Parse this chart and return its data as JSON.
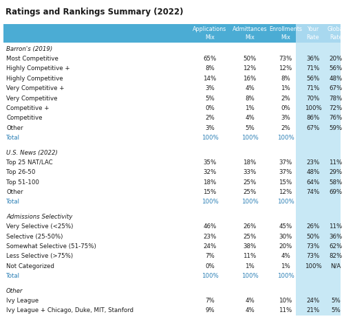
{
  "title": "Ratings and Rankings Summary (2022)",
  "header": [
    "Applications\nMix",
    "Admittances\nMix",
    "Enrollments\nMix",
    "Your\nRate",
    "Global\nRate"
  ],
  "header_bg": "#4bacd4",
  "light_blue_bg": "#c8e8f5",
  "rows": [
    {
      "label": "Barron's (2019)",
      "italic": true,
      "section": true
    },
    {
      "label": "Most Competitive",
      "vals": [
        "65%",
        "50%",
        "73%",
        "36%",
        "20%"
      ]
    },
    {
      "label": "Highly Competitive +",
      "vals": [
        "8%",
        "12%",
        "12%",
        "71%",
        "56%"
      ]
    },
    {
      "label": "Highly Competitive",
      "vals": [
        "14%",
        "16%",
        "8%",
        "56%",
        "48%"
      ]
    },
    {
      "label": "Very Competitive +",
      "vals": [
        "3%",
        "4%",
        "1%",
        "71%",
        "67%"
      ]
    },
    {
      "label": "Very Competitive",
      "vals": [
        "5%",
        "8%",
        "2%",
        "70%",
        "78%"
      ]
    },
    {
      "label": "Competitive +",
      "vals": [
        "0%",
        "1%",
        "0%",
        "100%",
        "72%"
      ]
    },
    {
      "label": "Competitive",
      "vals": [
        "2%",
        "4%",
        "3%",
        "86%",
        "76%"
      ]
    },
    {
      "label": "Other",
      "vals": [
        "3%",
        "5%",
        "2%",
        "67%",
        "59%"
      ]
    },
    {
      "label": "Total",
      "vals": [
        "100%",
        "100%",
        "100%",
        "",
        ""
      ],
      "blue": true
    },
    {
      "label": "",
      "spacer": true
    },
    {
      "label": "U.S. News (2022)",
      "italic": true,
      "section": true
    },
    {
      "label": "Top 25 NAT/LAC",
      "vals": [
        "35%",
        "18%",
        "37%",
        "23%",
        "11%"
      ]
    },
    {
      "label": "Top 26-50",
      "vals": [
        "32%",
        "33%",
        "37%",
        "48%",
        "29%"
      ]
    },
    {
      "label": "Top 51-100",
      "vals": [
        "18%",
        "25%",
        "15%",
        "64%",
        "58%"
      ]
    },
    {
      "label": "Other",
      "vals": [
        "15%",
        "25%",
        "12%",
        "74%",
        "69%"
      ]
    },
    {
      "label": "Total",
      "vals": [
        "100%",
        "100%",
        "100%",
        "",
        ""
      ],
      "blue": true
    },
    {
      "label": "",
      "spacer": true
    },
    {
      "label": "Admissions Selectivity",
      "italic": true,
      "section": true
    },
    {
      "label": "Very Selective (<25%)",
      "vals": [
        "46%",
        "26%",
        "45%",
        "26%",
        "11%"
      ]
    },
    {
      "label": "Selective (25-50%)",
      "vals": [
        "23%",
        "25%",
        "30%",
        "50%",
        "36%"
      ]
    },
    {
      "label": "Somewhat Selective (51-75%)",
      "vals": [
        "24%",
        "38%",
        "20%",
        "73%",
        "62%"
      ]
    },
    {
      "label": "Less Selective (>75%)",
      "vals": [
        "7%",
        "11%",
        "4%",
        "73%",
        "82%"
      ]
    },
    {
      "label": "Not Categorized",
      "vals": [
        "0%",
        "1%",
        "1%",
        "100%",
        "N/A"
      ]
    },
    {
      "label": "Total",
      "vals": [
        "100%",
        "100%",
        "100%",
        "",
        ""
      ],
      "blue": true
    },
    {
      "label": "",
      "spacer": true
    },
    {
      "label": "Other",
      "italic": true,
      "section": true
    },
    {
      "label": "Ivy League",
      "vals": [
        "7%",
        "4%",
        "10%",
        "24%",
        "5%"
      ]
    },
    {
      "label": "Ivy League + Chicago, Duke, MIT, Stanford",
      "vals": [
        "9%",
        "4%",
        "11%",
        "21%",
        "5%"
      ]
    }
  ]
}
